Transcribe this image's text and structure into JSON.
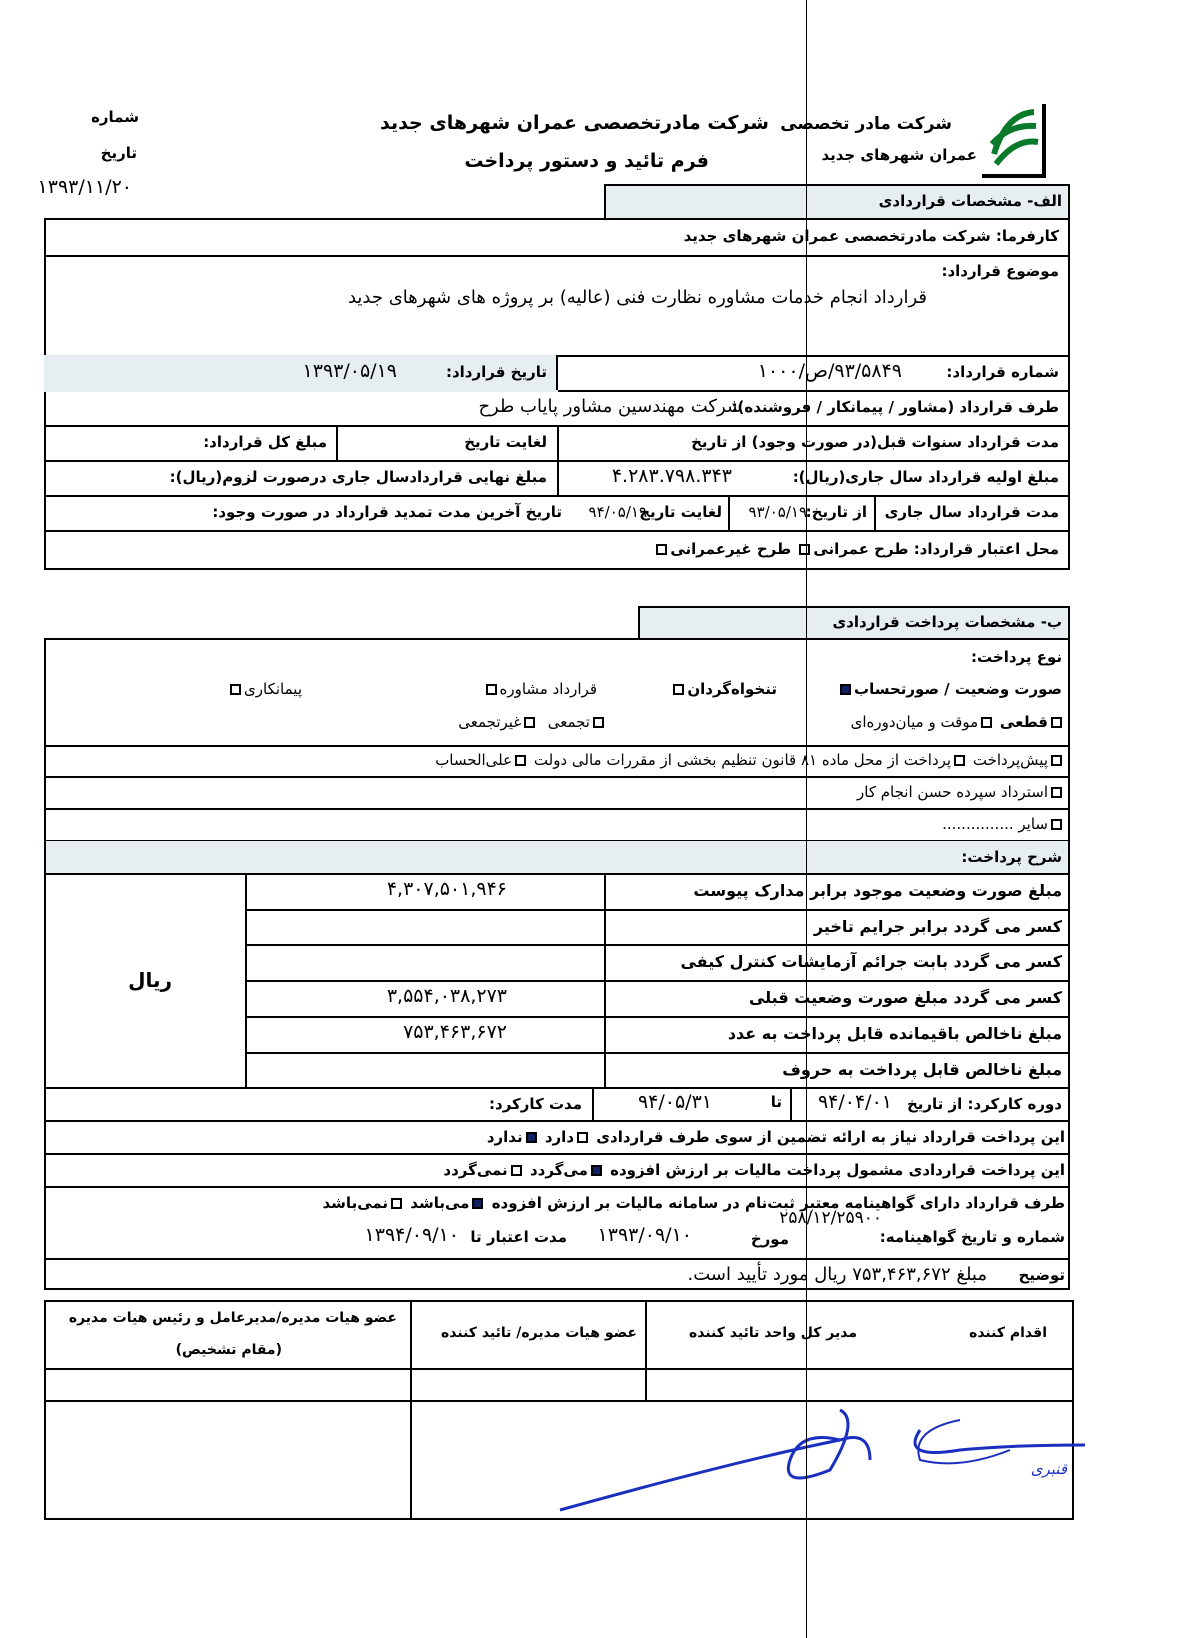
{
  "header": {
    "company": "شرکت مادرتخصصی عمران شهرهای جدید",
    "form_title": "فرم تائید و دستور پرداخت",
    "logo_text_1": "شرکت مادر تخصصی",
    "logo_text_2": "عمران شهرهای جدید",
    "number_label": "شماره",
    "date_label": "تاریخ",
    "date_value": "۱۳۹۳/۱۱/۲۰"
  },
  "section_a": {
    "title": "الف- مشخصات قراردادی",
    "employer": "کارفرما: شرکت مادرتخصصی عمران شهرهای جدید",
    "subject_label": "موضوع قرارداد:",
    "subject": "قرارداد انجام خدمات مشاوره نظارت فنی (عالیه) بر پروژه های شهرهای جدید",
    "contract_no_label": "شماره قرارداد:",
    "contract_no": "۹۳/۵۸۴۹/ص/۱۰۰۰",
    "contract_date_label": "تاریخ قرارداد:",
    "contract_date": "۱۳۹۳/۰۵/۱۹",
    "party_label": "طرف قرارداد (مشاور / پیمانکار / فروشنده):",
    "party": "شرکت مهندسین مشاور پایاب طرح",
    "prev_duration_label": "مدت قرارداد سنوات قبل(در صورت وجود) از تاریخ",
    "until_label": "لغایت تاریخ",
    "total_amount_label": "مبلغ کل قرارداد:",
    "initial_amount_label": "مبلغ اولیه قرارداد سال جاری(ریال):",
    "initial_amount": "۴.۲۸۳.۷۹۸.۳۴۳",
    "final_amount_label": "مبلغ نهایی قراردادسال جاری درصورت لزوم(ریال):",
    "current_duration_label": "مدت قرارداد سال جاری",
    "from_label": "از تاریخ:",
    "from_date": "۹۳/۰۵/۱۹",
    "to_label": "لغایت تاریخ",
    "to_date": "۹۴/۰۵/۱۹",
    "extension_label": "تاریخ آخرین مدت تمدید قرارداد در صورت وجود:",
    "credit_label": "محل اعتبار قرارداد:",
    "credit_opt1": "طرح عمرانی",
    "credit_opt2": "طرح غیرعمرانی"
  },
  "section_b": {
    "title": "ب- مشخصات پرداخت قراردادی",
    "payment_type_label": "نوع پرداخت:",
    "types": [
      {
        "label": "صورت وضعیت / صورتحساب",
        "checked": true
      },
      {
        "label": "تنخواه‌گردان",
        "checked": false
      },
      {
        "label": "قرارداد مشاوره",
        "checked": false
      },
      {
        "label": "پیمانکاری",
        "checked": false
      }
    ],
    "subtypes": [
      {
        "label": "قطعی",
        "checked": false
      },
      {
        "label": "موقت و میان‌دوره‌ای",
        "checked": false
      },
      {
        "label": "تجمعی",
        "checked": false
      },
      {
        "label": "غیرتجمعی",
        "checked": false
      }
    ],
    "row_advance": "پیش‌پرداخت",
    "row_art81": "پرداخت از محل ماده ۸۱ قانون تنظیم بخشی از مقررات مالی دولت",
    "row_onaccount": "علی‌الحساب",
    "row_refund": "استرداد سپرده حسن انجام کار",
    "row_other": "سایر ...............",
    "desc_label": "شرح پرداخت:",
    "currency": "ریال",
    "amounts": [
      {
        "label": "مبلغ صورت وضعیت موجود برابر مدارک پیوست",
        "value": "۴,۳۰۷,۵۰۱,۹۴۶"
      },
      {
        "label": "کسر می گردد برابر جرایم تاخیر",
        "value": ""
      },
      {
        "label": "کسر می گردد بابت جرائم آزمایشات کنترل کیفی",
        "value": ""
      },
      {
        "label": "کسر می گردد مبلغ صورت وضعیت قبلی",
        "value": "۳,۵۵۴,۰۳۸,۲۷۳"
      },
      {
        "label": "مبلغ ناخالص باقیمانده قابل پرداخت به عدد",
        "value": "۷۵۳,۴۶۳,۶۷۲"
      },
      {
        "label": "مبلغ ناخالص قابل پرداخت به حروف",
        "value": ""
      }
    ],
    "period_label": "دوره کارکرد: از تاریخ",
    "period_from": "۹۴/۰۴/۰۱",
    "period_to_label": "تا",
    "period_to": "۹۴/۰۵/۳۱",
    "work_duration_label": "مدت کارکرد:",
    "guarantee_text": "این پرداخت قرارداد نیاز به ارائه تضمین از سوی طرف قراردادی",
    "guarantee_yes": "دارد",
    "guarantee_no": "ندارد",
    "vat_text": "این پرداخت قراردادی مشمول پرداخت مالیات بر ارزش افزوده",
    "vat_yes": "می‌گردد",
    "vat_no": "نمی‌گردد",
    "cert_text": "طرف قرارداد دارای گواهینامه معتبر ثبت‌نام در سامانه مالیات بر ارزش افزوده",
    "cert_yes": "می‌باشد",
    "cert_no": "نمی‌باشد",
    "cert_no_label": "شماره و تاریخ گواهینامه:",
    "cert_number": "۲۵۸/۱۲/۲۵۹۰۰",
    "cert_dated_label": "مورخ",
    "cert_date": "۱۳۹۳/۰۹/۱۰",
    "validity_label": "مدت اعتبار تا",
    "validity_date": "۱۳۹۴/۰۹/۱۰",
    "note_label": "توضیح",
    "note": "مبلغ ۷۵۳,۴۶۳,۶۷۲ ریال مورد تأیید است."
  },
  "signatures": {
    "col1": "اقدام کننده",
    "col2": "مدیر کل واحد تائید کننده",
    "col3": "عضو هیات مدیره/ تائید کننده",
    "col4": "عضو هیات مدیره/مدیرعامل و رئیس هیات مدیره",
    "col4_sub": "(مقام تشخیص)",
    "handwritten_name": "قنبری"
  },
  "colors": {
    "checked_box": "#102060",
    "shade": "#e6eef2",
    "signature_ink": "#1a2fc0"
  }
}
